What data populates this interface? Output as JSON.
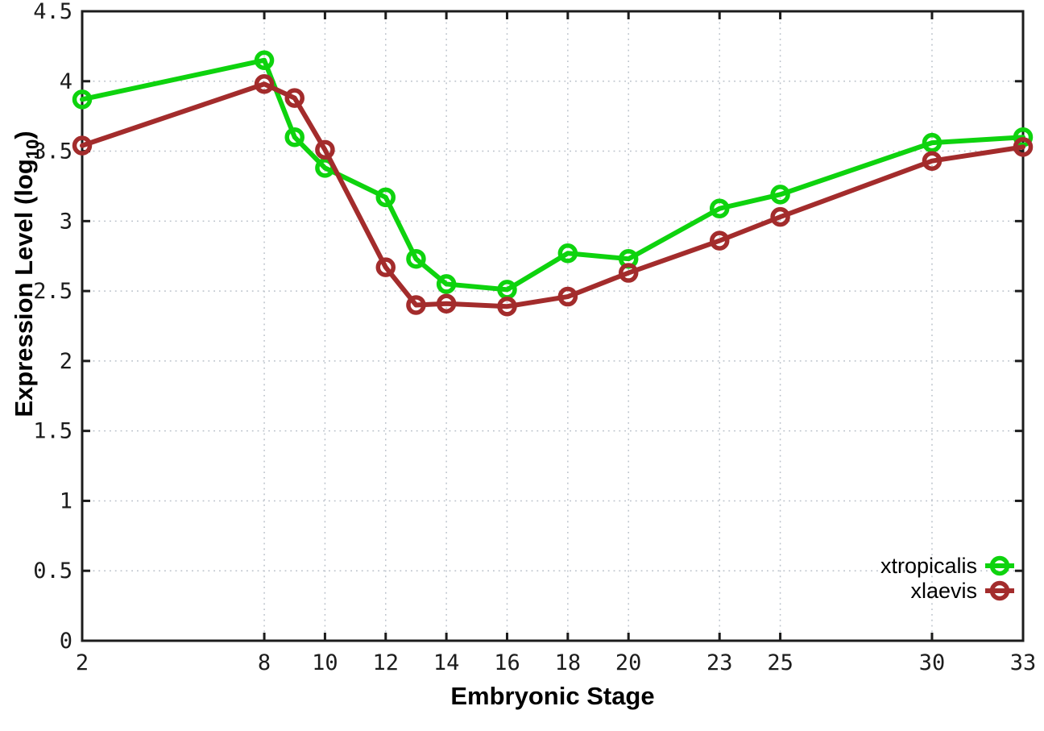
{
  "chart_data": {
    "type": "line",
    "title": "",
    "xlabel": "Embryonic Stage",
    "ylabel": {
      "full": "Expression Level (log10)",
      "prefix": "Expression Level (log",
      "subscript": "10",
      "suffix": ")"
    },
    "xlim": [
      2,
      33
    ],
    "ylim": [
      0,
      4.5
    ],
    "grid": true,
    "legend_position": "inside-bottom-right",
    "x": [
      2,
      8,
      9,
      10,
      12,
      13,
      14,
      16,
      18,
      20,
      23,
      25,
      30,
      33
    ],
    "xticks": [
      {
        "v": 2,
        "label": "2"
      },
      {
        "v": 8,
        "label": "8"
      },
      {
        "v": 10,
        "label": "10"
      },
      {
        "v": 12,
        "label": "12"
      },
      {
        "v": 14,
        "label": "14"
      },
      {
        "v": 16,
        "label": "16"
      },
      {
        "v": 18,
        "label": "18"
      },
      {
        "v": 20,
        "label": "20"
      },
      {
        "v": 23,
        "label": "23"
      },
      {
        "v": 25,
        "label": "25"
      },
      {
        "v": 30,
        "label": "30"
      },
      {
        "v": 33,
        "label": "33"
      }
    ],
    "yticks": [
      {
        "v": 0,
        "label": "0"
      },
      {
        "v": 0.5,
        "label": "0.5"
      },
      {
        "v": 1,
        "label": "1"
      },
      {
        "v": 1.5,
        "label": "1.5"
      },
      {
        "v": 2,
        "label": "2"
      },
      {
        "v": 2.5,
        "label": "2.5"
      },
      {
        "v": 3,
        "label": "3"
      },
      {
        "v": 3.5,
        "label": "3.5"
      },
      {
        "v": 4,
        "label": "4"
      },
      {
        "v": 4.5,
        "label": "4.5"
      }
    ],
    "series": [
      {
        "name": "xtropicalis",
        "color": "#0ed30e",
        "marker": "open-circle",
        "values": [
          3.87,
          4.15,
          3.6,
          3.38,
          3.17,
          2.73,
          2.55,
          2.51,
          2.77,
          2.73,
          3.09,
          3.19,
          3.56,
          3.6
        ]
      },
      {
        "name": "xlaevis",
        "color": "#a32c2c",
        "marker": "open-circle",
        "values": [
          3.54,
          3.98,
          3.88,
          3.51,
          2.67,
          2.4,
          2.41,
          2.39,
          2.46,
          2.63,
          2.86,
          3.03,
          3.43,
          3.53
        ]
      }
    ],
    "style": {
      "grid_color": "#b9c0c9",
      "border_color": "#1c1c1c",
      "line_width": 6,
      "marker_radius": 9.5,
      "marker_stroke": 5.5
    }
  }
}
